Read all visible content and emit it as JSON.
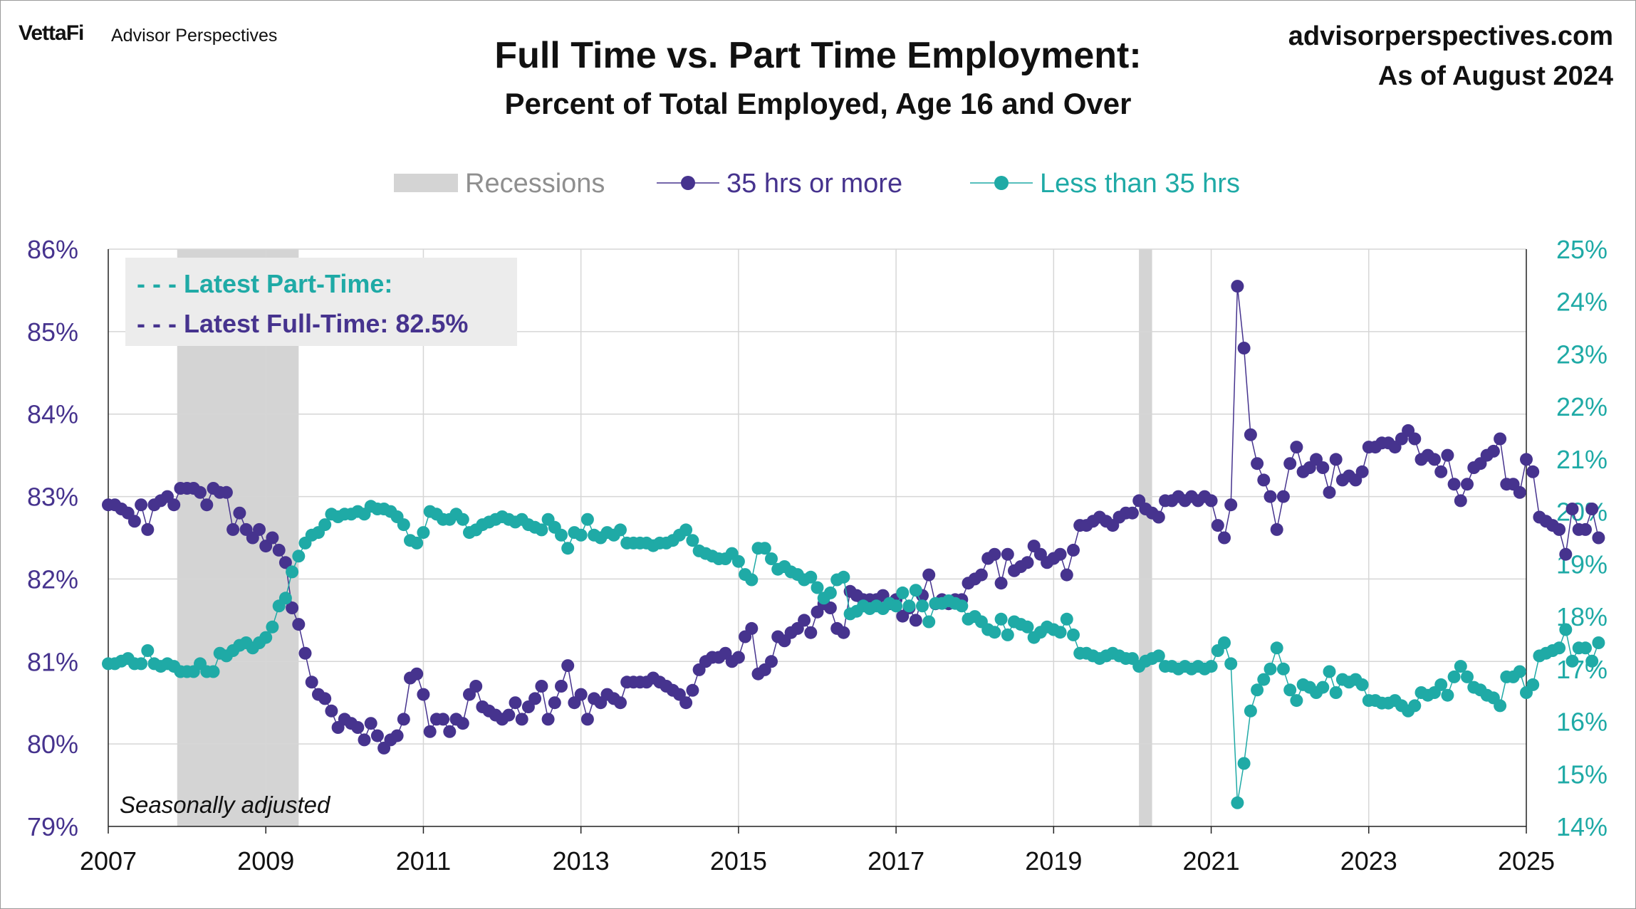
{
  "header": {
    "brand_logo": "VettaFi",
    "brand_name": "Advisor Perspectives",
    "title": "Full Time vs. Part Time Employment:",
    "subtitle": "Percent of Total Employed, Age 16 and Over",
    "site": "advisorperspectives.com",
    "as_of": "As of August 2024"
  },
  "colors": {
    "full_time": "#46338e",
    "part_time": "#1faaa6",
    "recession": "#d4d4d4",
    "grid": "#d6d6d6",
    "axis_text": "#111111"
  },
  "chart_data": {
    "type": "line",
    "legend": {
      "position": "top",
      "items": [
        "Recessions",
        "35 hrs or more",
        "Less than 35 hrs"
      ]
    },
    "annotation_box": {
      "part_time_label": "- - - Latest Part-Time:",
      "full_time_label": "- - - Latest Full-Time: 82.5%"
    },
    "note": "Seasonally adjusted",
    "x_axis": {
      "min": 2007,
      "max": 2025,
      "ticks": [
        "2007",
        "2009",
        "2011",
        "2013",
        "2015",
        "2017",
        "2019",
        "2021",
        "2023",
        "2025"
      ]
    },
    "y_left": {
      "min": 79,
      "max": 86,
      "ticks": [
        "79%",
        "80%",
        "81%",
        "82%",
        "83%",
        "84%",
        "85%",
        "86%"
      ]
    },
    "y_right": {
      "min": 14,
      "max": 25,
      "ticks": [
        "14%",
        "15%",
        "16%",
        "17%",
        "18%",
        "19%",
        "20%",
        "21%",
        "22%",
        "23%",
        "24%",
        "25%"
      ]
    },
    "recessions": [
      {
        "start": 2007.875,
        "end": 2009.417
      },
      {
        "start": 2020.083,
        "end": 2020.25
      }
    ],
    "series": [
      {
        "name": "35 hrs or more",
        "axis": "left",
        "start": 2007.0,
        "values": [
          82.9,
          82.9,
          82.85,
          82.8,
          82.7,
          82.9,
          82.6,
          82.9,
          82.95,
          83.0,
          82.9,
          83.1,
          83.1,
          83.1,
          83.05,
          82.9,
          83.1,
          83.05,
          83.05,
          82.6,
          82.8,
          82.6,
          82.5,
          82.6,
          82.4,
          82.5,
          82.35,
          82.2,
          81.65,
          81.45,
          81.1,
          80.75,
          80.6,
          80.55,
          80.4,
          80.2,
          80.3,
          80.25,
          80.2,
          80.05,
          80.25,
          80.1,
          79.95,
          80.05,
          80.1,
          80.3,
          80.8,
          80.85,
          80.6,
          80.15,
          80.3,
          80.3,
          80.15,
          80.3,
          80.25,
          80.6,
          80.7,
          80.45,
          80.4,
          80.35,
          80.3,
          80.35,
          80.5,
          80.3,
          80.45,
          80.55,
          80.7,
          80.3,
          80.5,
          80.7,
          80.95,
          80.5,
          80.6,
          80.3,
          80.55,
          80.5,
          80.6,
          80.55,
          80.5,
          80.75,
          80.75,
          80.75,
          80.75,
          80.8,
          80.75,
          80.7,
          80.65,
          80.6,
          80.5,
          80.65,
          80.9,
          81.0,
          81.05,
          81.05,
          81.1,
          81.0,
          81.05,
          81.3,
          81.4,
          80.85,
          80.9,
          81.0,
          81.3,
          81.25,
          81.35,
          81.4,
          81.5,
          81.35,
          81.6,
          81.7,
          81.65,
          81.4,
          81.35,
          81.85,
          81.8,
          81.75,
          81.75,
          81.75,
          81.8,
          81.7,
          81.75,
          81.55,
          81.65,
          81.5,
          81.8,
          82.05,
          81.7,
          81.75,
          81.7,
          81.75,
          81.75,
          81.95,
          82.0,
          82.05,
          82.25,
          82.3,
          81.95,
          82.3,
          82.1,
          82.15,
          82.2,
          82.4,
          82.3,
          82.2,
          82.25,
          82.3,
          82.05,
          82.35,
          82.65,
          82.65,
          82.7,
          82.75,
          82.7,
          82.65,
          82.75,
          82.8,
          82.8,
          82.95,
          82.85,
          82.8,
          82.75,
          82.95,
          82.95,
          83.0,
          82.95,
          83.0,
          82.95,
          83.0,
          82.95,
          82.65,
          82.5,
          82.9,
          85.55,
          84.8,
          83.75,
          83.4,
          83.2,
          83.0,
          82.6,
          83.0,
          83.4,
          83.6,
          83.3,
          83.35,
          83.45,
          83.35,
          83.05,
          83.45,
          83.2,
          83.25,
          83.2,
          83.3,
          83.6,
          83.6,
          83.65,
          83.65,
          83.6,
          83.7,
          83.8,
          83.7,
          83.45,
          83.5,
          83.45,
          83.3,
          83.5,
          83.15,
          82.95,
          83.15,
          83.35,
          83.4,
          83.5,
          83.55,
          83.7,
          83.15,
          83.15,
          83.05,
          83.45,
          83.3,
          82.75,
          82.7,
          82.65,
          82.6,
          82.3,
          82.85,
          82.6,
          82.6,
          82.85,
          82.5
        ]
      },
      {
        "name": "Less than 35 hrs",
        "axis": "right",
        "start": 2007.0,
        "values": [
          17.1,
          17.1,
          17.15,
          17.2,
          17.1,
          17.1,
          17.35,
          17.1,
          17.05,
          17.1,
          17.05,
          16.95,
          16.95,
          16.95,
          17.1,
          16.95,
          16.95,
          17.3,
          17.25,
          17.35,
          17.45,
          17.5,
          17.4,
          17.5,
          17.6,
          17.8,
          18.2,
          18.35,
          18.85,
          19.15,
          19.4,
          19.55,
          19.6,
          19.75,
          19.95,
          19.9,
          19.95,
          19.95,
          20.0,
          19.95,
          20.1,
          20.05,
          20.05,
          20.0,
          19.9,
          19.75,
          19.45,
          19.4,
          19.6,
          20.0,
          19.95,
          19.85,
          19.85,
          19.95,
          19.85,
          19.6,
          19.65,
          19.75,
          19.8,
          19.85,
          19.9,
          19.85,
          19.8,
          19.85,
          19.75,
          19.7,
          19.65,
          19.85,
          19.7,
          19.55,
          19.3,
          19.6,
          19.55,
          19.85,
          19.55,
          19.5,
          19.6,
          19.55,
          19.65,
          19.4,
          19.4,
          19.4,
          19.4,
          19.35,
          19.4,
          19.4,
          19.45,
          19.55,
          19.65,
          19.45,
          19.25,
          19.2,
          19.15,
          19.1,
          19.1,
          19.2,
          19.05,
          18.8,
          18.7,
          19.3,
          19.3,
          19.1,
          18.9,
          18.95,
          18.85,
          18.8,
          18.7,
          18.75,
          18.55,
          18.35,
          18.45,
          18.7,
          18.75,
          18.05,
          18.1,
          18.2,
          18.15,
          18.2,
          18.15,
          18.25,
          18.2,
          18.45,
          18.2,
          18.5,
          18.2,
          17.9,
          18.25,
          18.25,
          18.3,
          18.25,
          18.2,
          17.95,
          18.0,
          17.9,
          17.75,
          17.7,
          17.95,
          17.65,
          17.9,
          17.85,
          17.8,
          17.6,
          17.7,
          17.8,
          17.75,
          17.7,
          17.95,
          17.65,
          17.3,
          17.3,
          17.25,
          17.2,
          17.25,
          17.3,
          17.25,
          17.2,
          17.2,
          17.05,
          17.15,
          17.2,
          17.25,
          17.05,
          17.05,
          17.0,
          17.05,
          17.0,
          17.05,
          17.0,
          17.05,
          17.35,
          17.5,
          17.1,
          14.45,
          15.2,
          16.2,
          16.6,
          16.8,
          17.0,
          17.4,
          17.0,
          16.6,
          16.4,
          16.7,
          16.65,
          16.55,
          16.65,
          16.95,
          16.55,
          16.8,
          16.75,
          16.8,
          16.7,
          16.4,
          16.4,
          16.35,
          16.35,
          16.4,
          16.3,
          16.2,
          16.3,
          16.55,
          16.5,
          16.55,
          16.7,
          16.5,
          16.85,
          17.05,
          16.85,
          16.65,
          16.6,
          16.5,
          16.45,
          16.3,
          16.85,
          16.85,
          16.95,
          16.55,
          16.7,
          17.25,
          17.3,
          17.35,
          17.4,
          17.75,
          17.15,
          17.4,
          17.4,
          17.15,
          17.5
        ]
      }
    ]
  }
}
